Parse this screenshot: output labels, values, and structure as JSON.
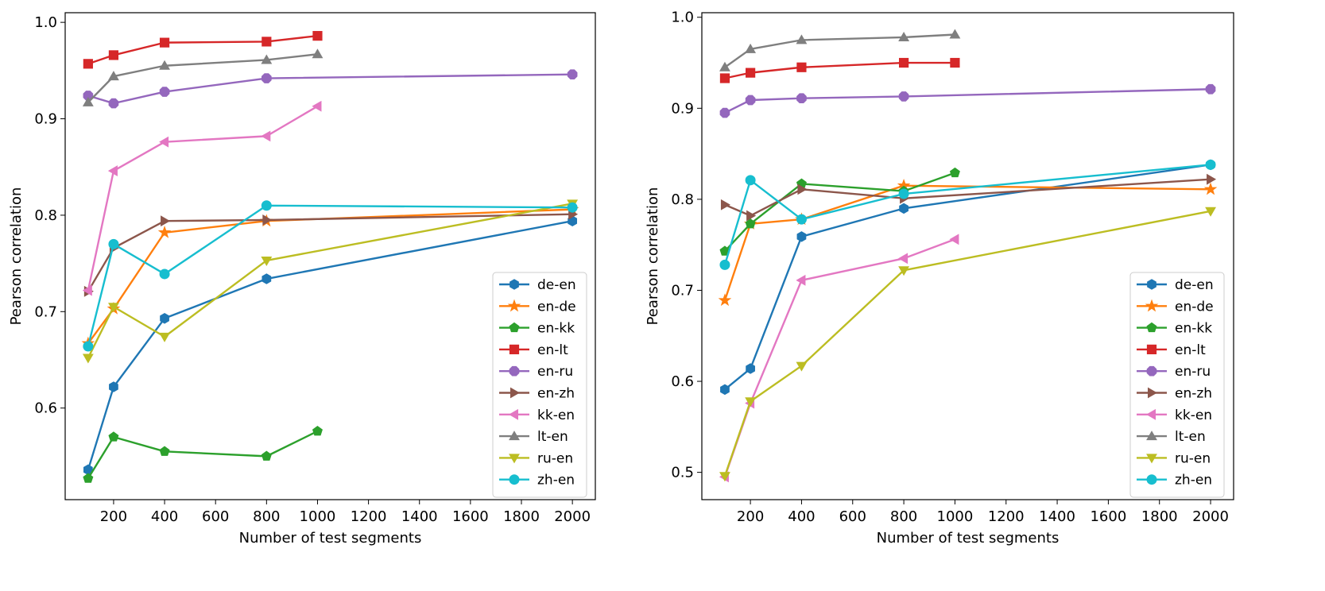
{
  "chart_data": [
    {
      "type": "line",
      "title": "",
      "xlabel": "Number of test segments",
      "ylabel": "Pearson correlation",
      "xlim": [
        10,
        2090
      ],
      "ylim": [
        0.505,
        1.01
      ],
      "xticks": [
        200,
        400,
        600,
        800,
        1000,
        1200,
        1400,
        1600,
        1800,
        2000
      ],
      "xtick_labels": [
        "200",
        "400",
        "600",
        "800",
        "1000",
        "1200",
        "1400",
        "1600",
        "1800",
        "2000"
      ],
      "yticks": [
        0.6,
        0.7,
        0.8,
        0.9,
        1.0
      ],
      "ytick_labels": [
        "0.6",
        "0.7",
        "0.8",
        "0.9",
        "1.0"
      ],
      "legend": "lower-right",
      "series": [
        {
          "name": "de-en",
          "color": "#1f77b4",
          "marker": "hexagon",
          "x": [
            100,
            200,
            400,
            800,
            2000
          ],
          "values": [
            0.536,
            0.622,
            0.693,
            0.734,
            0.794
          ]
        },
        {
          "name": "en-de",
          "color": "#ff7f0e",
          "marker": "star",
          "x": [
            100,
            200,
            400,
            800,
            2000
          ],
          "values": [
            0.667,
            0.703,
            0.782,
            0.794,
            0.806
          ]
        },
        {
          "name": "en-kk",
          "color": "#2ca02c",
          "marker": "pentagon",
          "x": [
            100,
            200,
            400,
            800,
            1000
          ],
          "values": [
            0.527,
            0.57,
            0.555,
            0.55,
            0.576
          ]
        },
        {
          "name": "en-lt",
          "color": "#d62728",
          "marker": "square",
          "x": [
            100,
            200,
            400,
            800,
            1000
          ],
          "values": [
            0.957,
            0.966,
            0.979,
            0.98,
            0.986
          ]
        },
        {
          "name": "en-ru",
          "color": "#9467bd",
          "marker": "octagon",
          "x": [
            100,
            200,
            400,
            800,
            2000
          ],
          "values": [
            0.924,
            0.916,
            0.928,
            0.942,
            0.946
          ]
        },
        {
          "name": "en-zh",
          "color": "#8c564b",
          "marker": "triangle-right",
          "x": [
            100,
            200,
            400,
            800,
            2000
          ],
          "values": [
            0.721,
            0.766,
            0.794,
            0.795,
            0.801
          ]
        },
        {
          "name": "kk-en",
          "color": "#e377c2",
          "marker": "triangle-left",
          "x": [
            100,
            200,
            400,
            800,
            1000
          ],
          "values": [
            0.722,
            0.846,
            0.876,
            0.882,
            0.913
          ]
        },
        {
          "name": "lt-en",
          "color": "#7f7f7f",
          "marker": "triangle-up",
          "x": [
            100,
            200,
            400,
            800,
            1000
          ],
          "values": [
            0.917,
            0.944,
            0.955,
            0.961,
            0.967
          ]
        },
        {
          "name": "ru-en",
          "color": "#bcbd22",
          "marker": "triangle-down",
          "x": [
            100,
            200,
            400,
            800,
            2000
          ],
          "values": [
            0.652,
            0.705,
            0.674,
            0.753,
            0.812
          ]
        },
        {
          "name": "zh-en",
          "color": "#17becf",
          "marker": "circle",
          "x": [
            100,
            200,
            400,
            800,
            2000
          ],
          "values": [
            0.664,
            0.77,
            0.739,
            0.81,
            0.808
          ]
        }
      ]
    },
    {
      "type": "line",
      "title": "",
      "xlabel": "Number of test segments",
      "ylabel": "Pearson correlation",
      "xlim": [
        10,
        2090
      ],
      "ylim": [
        0.47,
        1.005
      ],
      "xticks": [
        200,
        400,
        600,
        800,
        1000,
        1200,
        1400,
        1600,
        1800,
        2000
      ],
      "xtick_labels": [
        "200",
        "400",
        "600",
        "800",
        "1000",
        "1200",
        "1400",
        "1600",
        "1800",
        "2000"
      ],
      "yticks": [
        0.5,
        0.6,
        0.7,
        0.8,
        0.9,
        1.0
      ],
      "ytick_labels": [
        "0.5",
        "0.6",
        "0.7",
        "0.8",
        "0.9",
        "1.0"
      ],
      "legend": "lower-right",
      "series": [
        {
          "name": "de-en",
          "color": "#1f77b4",
          "marker": "hexagon",
          "x": [
            100,
            200,
            400,
            800,
            2000
          ],
          "values": [
            0.591,
            0.614,
            0.759,
            0.79,
            0.838
          ]
        },
        {
          "name": "en-de",
          "color": "#ff7f0e",
          "marker": "star",
          "x": [
            100,
            200,
            400,
            800,
            2000
          ],
          "values": [
            0.689,
            0.773,
            0.778,
            0.815,
            0.811
          ]
        },
        {
          "name": "en-kk",
          "color": "#2ca02c",
          "marker": "pentagon",
          "x": [
            100,
            200,
            400,
            800,
            1000
          ],
          "values": [
            0.743,
            0.773,
            0.817,
            0.809,
            0.829
          ]
        },
        {
          "name": "en-lt",
          "color": "#d62728",
          "marker": "square",
          "x": [
            100,
            200,
            400,
            800,
            1000
          ],
          "values": [
            0.933,
            0.939,
            0.945,
            0.95,
            0.95
          ]
        },
        {
          "name": "en-ru",
          "color": "#9467bd",
          "marker": "octagon",
          "x": [
            100,
            200,
            400,
            800,
            2000
          ],
          "values": [
            0.895,
            0.909,
            0.911,
            0.913,
            0.921
          ]
        },
        {
          "name": "en-zh",
          "color": "#8c564b",
          "marker": "triangle-right",
          "x": [
            100,
            200,
            400,
            800,
            2000
          ],
          "values": [
            0.794,
            0.782,
            0.811,
            0.801,
            0.822
          ]
        },
        {
          "name": "kk-en",
          "color": "#e377c2",
          "marker": "triangle-left",
          "x": [
            100,
            200,
            400,
            800,
            1000
          ],
          "values": [
            0.495,
            0.576,
            0.711,
            0.735,
            0.756
          ]
        },
        {
          "name": "lt-en",
          "color": "#7f7f7f",
          "marker": "triangle-up",
          "x": [
            100,
            200,
            400,
            800,
            1000
          ],
          "values": [
            0.945,
            0.965,
            0.975,
            0.978,
            0.981
          ]
        },
        {
          "name": "ru-en",
          "color": "#bcbd22",
          "marker": "triangle-down",
          "x": [
            100,
            200,
            400,
            800,
            2000
          ],
          "values": [
            0.496,
            0.578,
            0.617,
            0.722,
            0.787
          ]
        },
        {
          "name": "zh-en",
          "color": "#17becf",
          "marker": "circle",
          "x": [
            100,
            200,
            400,
            800,
            2000
          ],
          "values": [
            0.728,
            0.821,
            0.778,
            0.806,
            0.838
          ]
        }
      ]
    }
  ]
}
